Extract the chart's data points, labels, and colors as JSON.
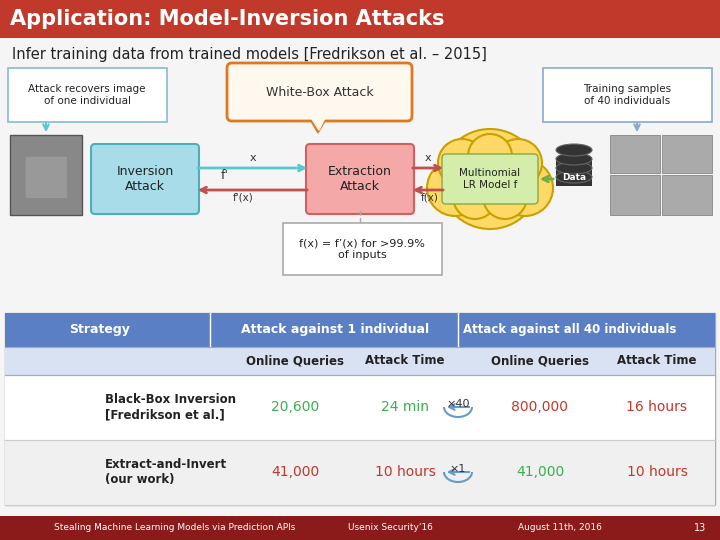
{
  "title": "Application: Model-Inversion Attacks",
  "title_bg": "#c0392b",
  "title_color": "#ffffff",
  "subtitle": "Infer training data from trained models [Fredrikson et al. – 2015]",
  "subtitle_color": "#222222",
  "bg_color": "#f5f5f5",
  "header_blue": "#5b7fc4",
  "header_text": "#ffffff",
  "footer_bg": "#8b1a1a",
  "footer_text_color": "#ffffff",
  "footer_left": "Stealing Machine Learning Models via Prediction APIs",
  "footer_mid": "Usenix Security'16",
  "footer_right": "August 11th, 2016",
  "footer_num": "13",
  "box_inversion_color": "#a8dce8",
  "box_extraction_color": "#f4a8a8",
  "box_model_color": "#d4edaa",
  "cloud_color": "#ffd966",
  "callout_color": "#e07820",
  "data_cyl_color": "#333333",
  "green_color": "#3cb050",
  "red_color": "#c0392b",
  "arc_color": "#6699cc",
  "arrow_cyan": "#5bc8d0",
  "arrow_red": "#c0504d",
  "arrow_green": "#70ad47"
}
